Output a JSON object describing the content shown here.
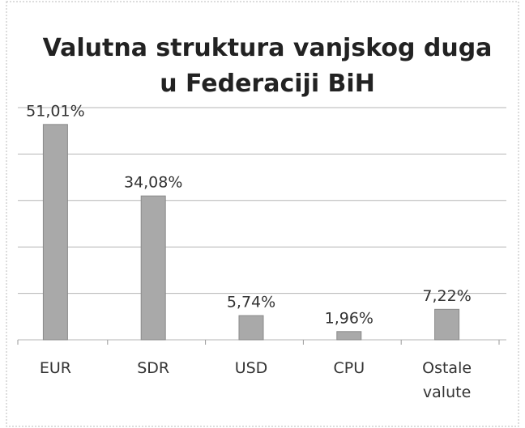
{
  "chart_data": {
    "type": "bar",
    "title": "Valutna struktura vanjskog duga u Federaciji BiH",
    "categories": [
      "EUR",
      "SDR",
      "USD",
      "CPU",
      "Ostale valute"
    ],
    "values": [
      51.01,
      34.08,
      5.74,
      1.96,
      7.22
    ],
    "value_labels": [
      "51,01%",
      "34,08%",
      "5,74%",
      "1,96%",
      "7,22%"
    ],
    "color": "#a9a9a9",
    "ylim": [
      0,
      55
    ],
    "yticks": [
      0,
      11,
      22,
      33,
      44,
      55
    ],
    "grid": true
  }
}
